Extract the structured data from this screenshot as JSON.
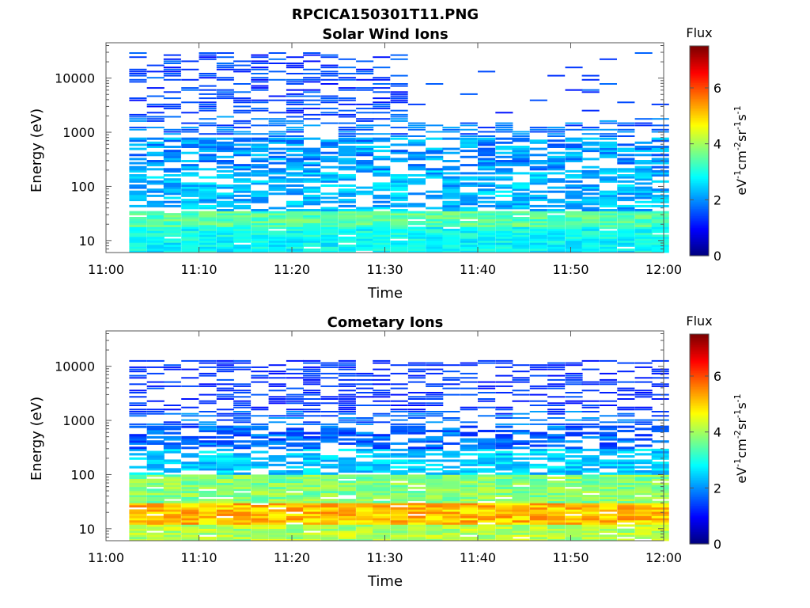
{
  "figure": {
    "title": "RPCICA150301T11.PNG"
  },
  "colorbar": {
    "title": "Flux",
    "unit_base": [
      "eV",
      "cm",
      "sr",
      "s"
    ],
    "unit_exponents": [
      "-1",
      "-2",
      "-1",
      "-1"
    ],
    "range": [
      0,
      7.5
    ],
    "ticks": [
      0,
      2,
      4,
      6
    ],
    "tick_labels": [
      "0",
      "2",
      "4",
      "6"
    ],
    "colormap": "jet"
  },
  "chart_data": [
    {
      "type": "heatmap",
      "title": "Solar Wind Ions",
      "xlabel": "Time",
      "ylabel": "Energy (eV)",
      "y_scale": "log",
      "ylim": [
        6,
        45000
      ],
      "xlim": [
        "11:00",
        "12:00"
      ],
      "x_ticks": [
        "11:00",
        "11:10",
        "11:20",
        "11:30",
        "11:40",
        "11:50",
        "12:00"
      ],
      "y_ticks": [
        10,
        100,
        1000,
        10000
      ],
      "y_tick_labels": [
        "10",
        "100",
        "1000",
        "10000"
      ],
      "scan_start_times": [
        "11:02.5",
        "11:04.4",
        "11:06.2",
        "11:08.1",
        "11:10",
        "11:11.9",
        "11:13.7",
        "11:15.6",
        "11:17.5",
        "11:19.4",
        "11:21.2",
        "11:23.1",
        "11:25",
        "11:26.9",
        "11:28.7",
        "11:30.6",
        "11:32.5",
        "11:34.4",
        "11:36.2",
        "11:38.1",
        "11:40",
        "11:41.9",
        "11:43.7",
        "11:45.6",
        "11:47.5",
        "11:49.4",
        "11:51.2",
        "11:53.1",
        "11:55",
        "11:56.9",
        "11:58.7"
      ],
      "energy_bands_eV": [
        {
          "range": [
            6,
            10
          ],
          "flux_min": 2.4,
          "flux_max": 3.2
        },
        {
          "range": [
            10,
            18
          ],
          "flux_min": 2.5,
          "flux_max": 3.3
        },
        {
          "range": [
            18,
            35
          ],
          "flux_min": 3.0,
          "flux_max": 3.9
        },
        {
          "range": [
            35,
            200
          ],
          "flux_min": 1.8,
          "flux_max": 2.8
        },
        {
          "range": [
            200,
            800
          ],
          "flux_min": 1.5,
          "flux_max": 2.6
        },
        {
          "range": [
            800,
            2000
          ],
          "flux_min": 1.2,
          "flux_max": 2.2
        },
        {
          "range": [
            2000,
            30000
          ],
          "flux_min": 1.0,
          "flux_max": 1.8
        }
      ],
      "high_energy_until": "11:32"
    },
    {
      "type": "heatmap",
      "title": "Cometary Ions",
      "xlabel": "Time",
      "ylabel": "Energy (eV)",
      "y_scale": "log",
      "ylim": [
        6,
        45000
      ],
      "xlim": [
        "11:00",
        "12:00"
      ],
      "x_ticks": [
        "11:00",
        "11:10",
        "11:20",
        "11:30",
        "11:40",
        "11:50",
        "12:00"
      ],
      "y_ticks": [
        10,
        100,
        1000,
        10000
      ],
      "y_tick_labels": [
        "10",
        "100",
        "1000",
        "10000"
      ],
      "scan_start_times": [
        "11:02.5",
        "11:04.4",
        "11:06.2",
        "11:08.1",
        "11:10",
        "11:11.9",
        "11:13.7",
        "11:15.6",
        "11:17.5",
        "11:19.4",
        "11:21.2",
        "11:23.1",
        "11:25",
        "11:26.9",
        "11:28.7",
        "11:30.6",
        "11:32.5",
        "11:34.4",
        "11:36.2",
        "11:38.1",
        "11:40",
        "11:41.9",
        "11:43.7",
        "11:45.6",
        "11:47.5",
        "11:49.4",
        "11:51.2",
        "11:53.1",
        "11:55",
        "11:56.9",
        "11:58.7"
      ],
      "energy_bands_eV": [
        {
          "range": [
            6,
            12
          ],
          "flux_min": 3.6,
          "flux_max": 4.6
        },
        {
          "range": [
            12,
            30
          ],
          "flux_min": 4.6,
          "flux_max": 5.7
        },
        {
          "range": [
            30,
            100
          ],
          "flux_min": 3.3,
          "flux_max": 4.3
        },
        {
          "range": [
            100,
            300
          ],
          "flux_min": 2.0,
          "flux_max": 2.9
        },
        {
          "range": [
            300,
            1500
          ],
          "flux_min": 1.2,
          "flux_max": 2.2
        },
        {
          "range": [
            1500,
            13000
          ],
          "flux_min": 1.0,
          "flux_max": 1.6
        }
      ],
      "high_energy_until": "12:00"
    }
  ]
}
